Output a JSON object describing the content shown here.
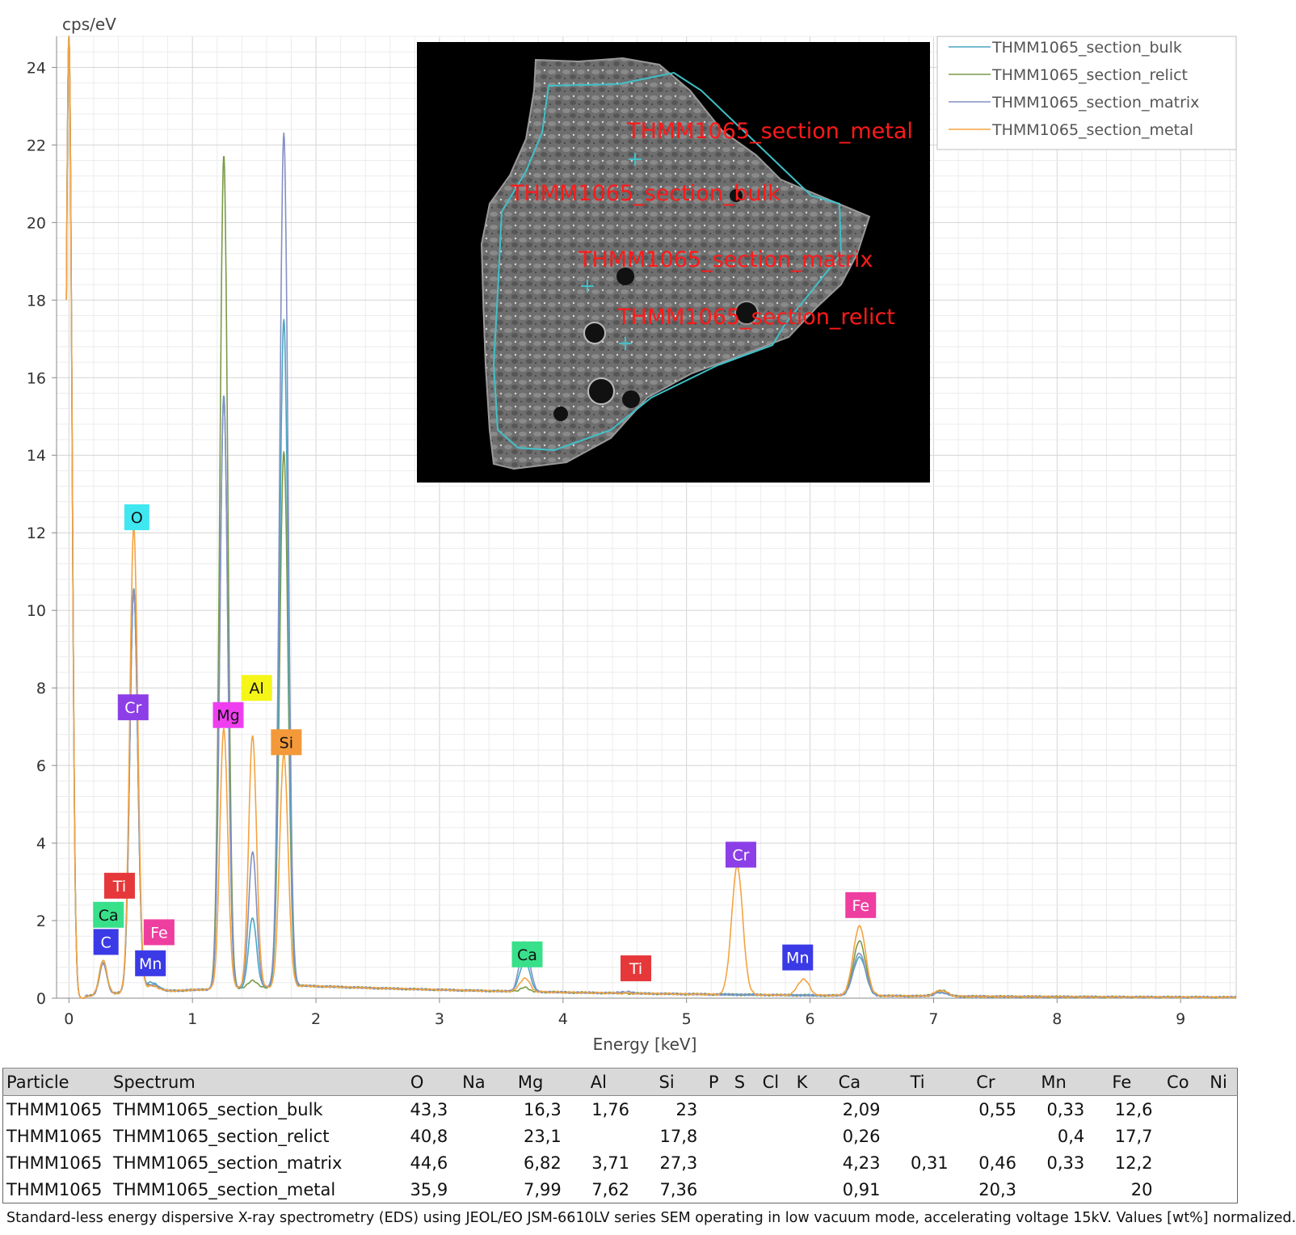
{
  "chart_data": {
    "type": "line",
    "ylabel": "cps/eV",
    "xlabel": "Energy [keV]",
    "xlim": [
      -0.1,
      9.45
    ],
    "ylim": [
      0,
      24.8
    ],
    "x_ticks": [
      "0",
      "1",
      "2",
      "3",
      "4",
      "5",
      "6",
      "7",
      "8",
      "9"
    ],
    "y_ticks": [
      "0",
      "2",
      "4",
      "6",
      "8",
      "10",
      "12",
      "14",
      "16",
      "18",
      "20",
      "22",
      "24"
    ],
    "grid": true,
    "legend_position": "top-right",
    "series": [
      {
        "name": "THMM1065_section_bulk",
        "color": "#4aa6c4",
        "peaks": [
          [
            0,
            24.8,
            0.025
          ],
          [
            0.277,
            0.9,
            0.03
          ],
          [
            0.525,
            10.4,
            0.032
          ],
          [
            0.64,
            0.18,
            0.035
          ],
          [
            0.705,
            0.15,
            0.04
          ],
          [
            1.254,
            15.3,
            0.032
          ],
          [
            1.487,
            1.8,
            0.032
          ],
          [
            1.74,
            17.2,
            0.034
          ],
          [
            3.69,
            0.8,
            0.04
          ],
          [
            6.4,
            1.0,
            0.05
          ],
          [
            7.06,
            0.1,
            0.05
          ]
        ]
      },
      {
        "name": "THMM1065_section_relict",
        "color": "#7a9a48",
        "peaks": [
          [
            0,
            24.8,
            0.025
          ],
          [
            0.277,
            0.8,
            0.03
          ],
          [
            0.525,
            10.4,
            0.032
          ],
          [
            0.64,
            0.12,
            0.035
          ],
          [
            0.705,
            0.12,
            0.04
          ],
          [
            1.254,
            21.5,
            0.032
          ],
          [
            1.487,
            0.2,
            0.032
          ],
          [
            1.74,
            13.8,
            0.034
          ],
          [
            3.69,
            0.1,
            0.04
          ],
          [
            6.4,
            1.4,
            0.05
          ],
          [
            7.06,
            0.15,
            0.05
          ]
        ]
      },
      {
        "name": "THMM1065_section_matrix",
        "color": "#8390c4",
        "peaks": [
          [
            0,
            24.8,
            0.025
          ],
          [
            0.277,
            0.8,
            0.03
          ],
          [
            0.525,
            10.4,
            0.032
          ],
          [
            0.64,
            0.15,
            0.035
          ],
          [
            0.705,
            0.12,
            0.04
          ],
          [
            1.254,
            15.3,
            0.032
          ],
          [
            1.487,
            3.5,
            0.032
          ],
          [
            1.74,
            22.0,
            0.034
          ],
          [
            3.69,
            1.3,
            0.04
          ],
          [
            4.51,
            0.05,
            0.04
          ],
          [
            6.4,
            1.1,
            0.05
          ],
          [
            7.06,
            0.1,
            0.05
          ]
        ]
      },
      {
        "name": "THMM1065_section_metal",
        "color": "#f4a340",
        "peaks": [
          [
            0,
            24.8,
            0.025
          ],
          [
            0.277,
            0.9,
            0.03
          ],
          [
            0.525,
            12.0,
            0.032
          ],
          [
            0.64,
            0.1,
            0.035
          ],
          [
            0.705,
            0.1,
            0.04
          ],
          [
            1.254,
            6.7,
            0.032
          ],
          [
            1.487,
            6.5,
            0.032
          ],
          [
            1.74,
            6.0,
            0.034
          ],
          [
            3.69,
            0.35,
            0.04
          ],
          [
            5.41,
            3.3,
            0.045
          ],
          [
            5.946,
            0.42,
            0.045
          ],
          [
            6.4,
            1.8,
            0.05
          ],
          [
            7.06,
            0.15,
            0.05
          ]
        ]
      }
    ],
    "peak_labels": [
      {
        "text": "O",
        "x": 0.55,
        "y": 12.4,
        "bg": "#3fe8f0",
        "fg": "#111111"
      },
      {
        "text": "Cr",
        "x": 0.52,
        "y": 7.5,
        "bg": "#8c3fe6",
        "fg": "#ffffff"
      },
      {
        "text": "Ti",
        "x": 0.41,
        "y": 2.9,
        "bg": "#e6383a",
        "fg": "#ffffff"
      },
      {
        "text": "Ca",
        "x": 0.32,
        "y": 2.15,
        "bg": "#38e08a",
        "fg": "#111111"
      },
      {
        "text": "C",
        "x": 0.3,
        "y": 1.45,
        "bg": "#3a3ae6",
        "fg": "#ffffff"
      },
      {
        "text": "Fe",
        "x": 0.73,
        "y": 1.7,
        "bg": "#ee3ea0",
        "fg": "#ffffff"
      },
      {
        "text": "Mn",
        "x": 0.66,
        "y": 0.9,
        "bg": "#3a3ae6",
        "fg": "#ffffff"
      },
      {
        "text": "Mg",
        "x": 1.29,
        "y": 7.3,
        "bg": "#ee3ef0",
        "fg": "#111111"
      },
      {
        "text": "Al",
        "x": 1.52,
        "y": 8.0,
        "bg": "#f5f518",
        "fg": "#111111"
      },
      {
        "text": "Si",
        "x": 1.76,
        "y": 6.6,
        "bg": "#f3993a",
        "fg": "#111111"
      },
      {
        "text": "Ca",
        "x": 3.71,
        "y": 1.13,
        "bg": "#38e08a",
        "fg": "#111111"
      },
      {
        "text": "Ti",
        "x": 4.59,
        "y": 0.77,
        "bg": "#e6383a",
        "fg": "#ffffff"
      },
      {
        "text": "Cr",
        "x": 5.44,
        "y": 3.7,
        "bg": "#8c3fe6",
        "fg": "#ffffff"
      },
      {
        "text": "Mn",
        "x": 5.9,
        "y": 1.05,
        "bg": "#3a3ae6",
        "fg": "#ffffff"
      },
      {
        "text": "Fe",
        "x": 6.41,
        "y": 2.4,
        "bg": "#ee3ea0",
        "fg": "#ffffff"
      }
    ]
  },
  "inset_image": {
    "labels": [
      {
        "text": "THMM1065_section_metal"
      },
      {
        "text": "THMM1065_section_bulk"
      },
      {
        "text": "THMM1065_section_matrix"
      },
      {
        "text": "THMM1065_section_relict"
      }
    ]
  },
  "table": {
    "headers": [
      "Particle",
      "Spectrum",
      "O",
      "Na",
      "Mg",
      "Al",
      "Si",
      "P",
      "S",
      "Cl",
      "K",
      "Ca",
      "Ti",
      "Cr",
      "Mn",
      "Fe",
      "Co",
      "Ni"
    ],
    "rows": [
      [
        "THMM1065",
        "THMM1065_section_bulk",
        "43,3",
        "",
        "16,3",
        "1,76",
        "23",
        "",
        "",
        "",
        "",
        "2,09",
        "",
        "0,55",
        "0,33",
        "12,6",
        "",
        ""
      ],
      [
        "THMM1065",
        "THMM1065_section_relict",
        "40,8",
        "",
        "23,1",
        "",
        "17,8",
        "",
        "",
        "",
        "",
        "0,26",
        "",
        "",
        "0,4",
        "17,7",
        "",
        ""
      ],
      [
        "THMM1065",
        "THMM1065_section_matrix",
        "44,6",
        "",
        "6,82",
        "3,71",
        "27,3",
        "",
        "",
        "",
        "",
        "4,23",
        "0,31",
        "0,46",
        "0,33",
        "12,2",
        "",
        ""
      ],
      [
        "THMM1065",
        "THMM1065_section_metal",
        "35,9",
        "",
        "7,99",
        "7,62",
        "7,36",
        "",
        "",
        "",
        "",
        "0,91",
        "",
        "20,3",
        "",
        "20",
        "",
        ""
      ]
    ]
  },
  "footnote": "Standard-less energy dispersive X-ray spectrometry (EDS) using JEOL/EO JSM-6610LV series SEM operating in low vacuum mode, accelerating voltage 15kV. Values [wt%] normalized."
}
